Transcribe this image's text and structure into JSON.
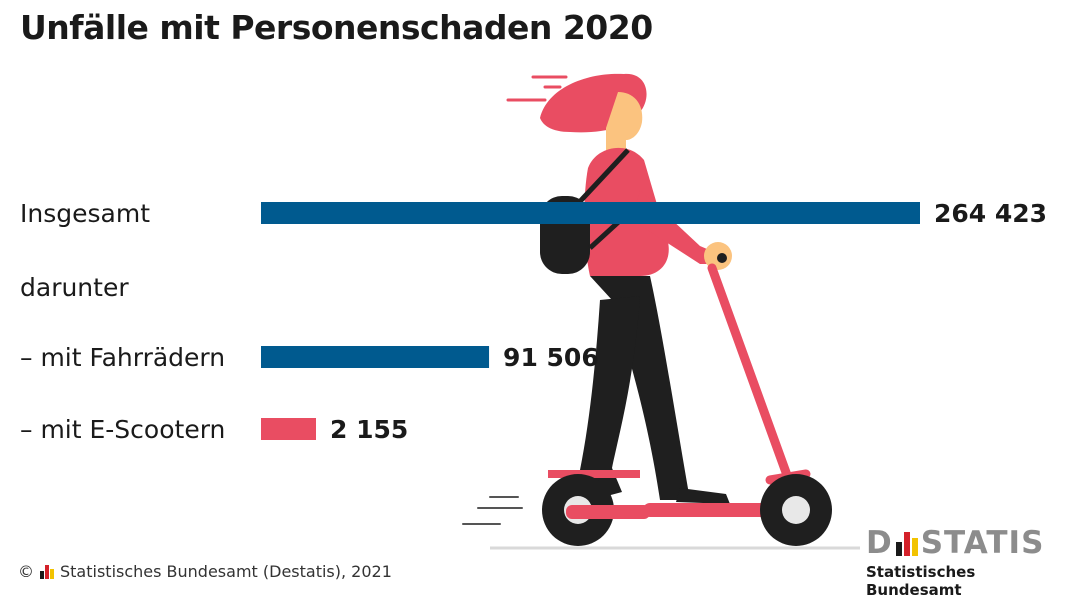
{
  "title": "Unfälle mit Personenschaden 2020",
  "sub_heading": "darunter",
  "footer": {
    "copyright": "©",
    "source": "Statistisches Bundesamt (Destatis), 2021"
  },
  "logo": {
    "word_left": "D",
    "word_right": "STATIS",
    "subtitle": "Statistisches Bundesamt"
  },
  "colors": {
    "blue": "#005a8f",
    "red": "#e94d62",
    "dark": "#1a1a1a",
    "skin": "#fbc37f",
    "hair": "#e94d62"
  },
  "chart_data": {
    "type": "bar",
    "orientation": "horizontal",
    "categories": [
      "Insgesamt",
      "– mit Fahrrädern",
      "– mit E-Scootern"
    ],
    "values": [
      264423,
      91506,
      2155
    ],
    "value_labels": [
      "264 423",
      "91 506",
      "2 155"
    ],
    "bar_colors": [
      "#005a8f",
      "#005a8f",
      "#e94d62"
    ],
    "title": "Unfälle mit Personenschaden 2020",
    "xlabel": "",
    "ylabel": ""
  }
}
